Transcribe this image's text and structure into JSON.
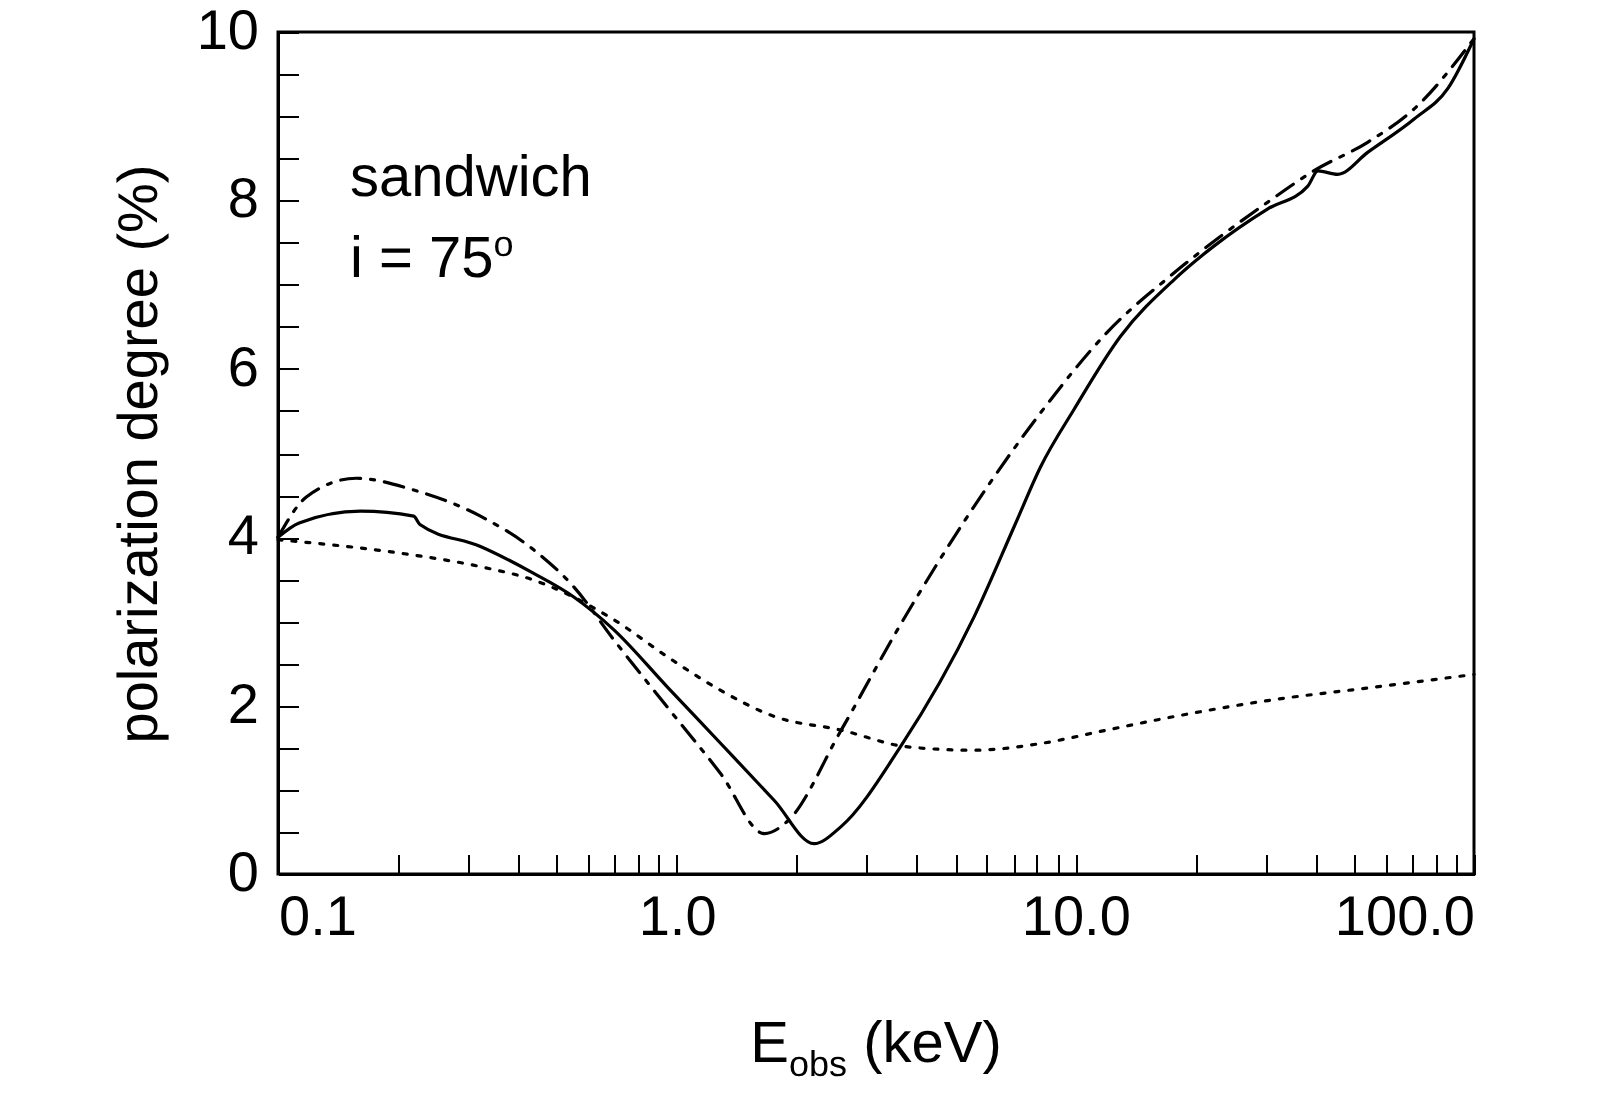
{
  "chart_data": {
    "type": "line",
    "xlabel": "E$_{obs}$ (keV)",
    "ylabel": "polarization degree (%)",
    "annotations": [
      "sandwich",
      "i = 75$^{o}$"
    ],
    "log": "x",
    "xlim": [
      0.1,
      100
    ],
    "ylim": [
      0,
      10
    ],
    "xticks": [
      0.1,
      {
        "value": 0.2,
        "label": null
      },
      {
        "value": 0.3,
        "label": null
      },
      {
        "value": 0.4,
        "label": null
      },
      {
        "value": 0.5,
        "label": null
      },
      {
        "value": 0.6,
        "label": null
      },
      {
        "value": 0.7,
        "label": null
      },
      {
        "value": 0.8,
        "label": null
      },
      {
        "value": 0.9,
        "label": null
      },
      {
        "value": 1,
        "label": "1.0"
      },
      {
        "value": 2,
        "label": null
      },
      {
        "value": 3,
        "label": null
      },
      {
        "value": 4,
        "label": null
      },
      {
        "value": 5,
        "label": null
      },
      {
        "value": 6,
        "label": null
      },
      {
        "value": 7,
        "label": null
      },
      {
        "value": 8,
        "label": null
      },
      {
        "value": 9,
        "label": null
      },
      {
        "value": 10,
        "label": "10.0"
      },
      {
        "value": 20,
        "label": null
      },
      {
        "value": 30,
        "label": null
      },
      {
        "value": 40,
        "label": null
      },
      {
        "value": 50,
        "label": null
      },
      {
        "value": 60,
        "label": null
      },
      {
        "value": 70,
        "label": null
      },
      {
        "value": 80,
        "label": null
      },
      {
        "value": 90,
        "label": null
      },
      {
        "value": 100,
        "label": "100.0"
      }
    ],
    "yticks": [
      0,
      {
        "value": 0.5,
        "label": null
      },
      {
        "value": 1,
        "label": null
      },
      {
        "value": 1.5,
        "label": null
      },
      2,
      {
        "value": 2.5,
        "label": null
      },
      {
        "value": 3,
        "label": null
      },
      {
        "value": 3.5,
        "label": null
      },
      4,
      {
        "value": 4.5,
        "label": null
      },
      {
        "value": 5,
        "label": null
      },
      {
        "value": 5.5,
        "label": null
      },
      6,
      {
        "value": 6.5,
        "label": null
      },
      {
        "value": 7,
        "label": null
      },
      {
        "value": 7.5,
        "label": null
      },
      8,
      {
        "value": 8.5,
        "label": null
      },
      {
        "value": 9,
        "label": null
      },
      {
        "value": 9.5,
        "label": null
      },
      10
    ],
    "grid": false,
    "marker": "none",
    "series": [
      {
        "color": "#000000",
        "line_style": "solid",
        "x": [
          0.1,
          0.113,
          0.161,
          0.219,
          0.227,
          0.322,
          0.438,
          0.552,
          0.696,
          0.948,
          1.29,
          1.76,
          2.21,
          2.58,
          3.63,
          5.58,
          7.03,
          8.19,
          9.93,
          13.0,
          17.7,
          22.3,
          30.4,
          38.3,
          40.6,
          45.5,
          54.1,
          70.9,
          86.0,
          100
        ],
        "values": [
          4.0,
          4.17,
          4.31,
          4.25,
          4.15,
          3.89,
          3.57,
          3.29,
          2.9,
          2.22,
          1.55,
          0.87,
          0.36,
          0.56,
          1.5,
          3.06,
          4.13,
          4.84,
          5.52,
          6.39,
          7.06,
          7.46,
          7.9,
          8.17,
          8.35,
          8.31,
          8.57,
          8.97,
          9.33,
          9.92
        ]
      },
      {
        "color": "#000000",
        "line_style": "dashdot",
        "x": [
          0.1,
          0.118,
          0.157,
          0.219,
          0.322,
          0.438,
          0.552,
          0.696,
          0.948,
          1.29,
          1.66,
          1.9,
          2.58,
          3.63,
          5.58,
          8.19,
          12.0,
          17.7,
          30.4,
          39.6,
          54.1,
          70.9,
          100
        ],
        "values": [
          4.0,
          4.48,
          4.7,
          4.56,
          4.25,
          3.85,
          3.41,
          2.78,
          1.98,
          1.19,
          0.48,
          0.63,
          1.7,
          2.95,
          4.37,
          5.48,
          6.43,
          7.14,
          7.98,
          8.35,
          8.69,
          9.09,
          9.92
        ]
      },
      {
        "color": "#000000",
        "line_style": "dotted",
        "x": [
          0.1,
          0.203,
          0.322,
          0.438,
          0.696,
          0.948,
          1.29,
          1.76,
          2.58,
          3.8,
          5.58,
          8.19,
          12.0,
          17.7,
          30.4,
          56.5,
          100
        ],
        "values": [
          3.97,
          3.81,
          3.65,
          3.49,
          3.02,
          2.58,
          2.18,
          1.87,
          1.71,
          1.51,
          1.47,
          1.55,
          1.71,
          1.87,
          2.06,
          2.22,
          2.37
        ]
      }
    ]
  }
}
